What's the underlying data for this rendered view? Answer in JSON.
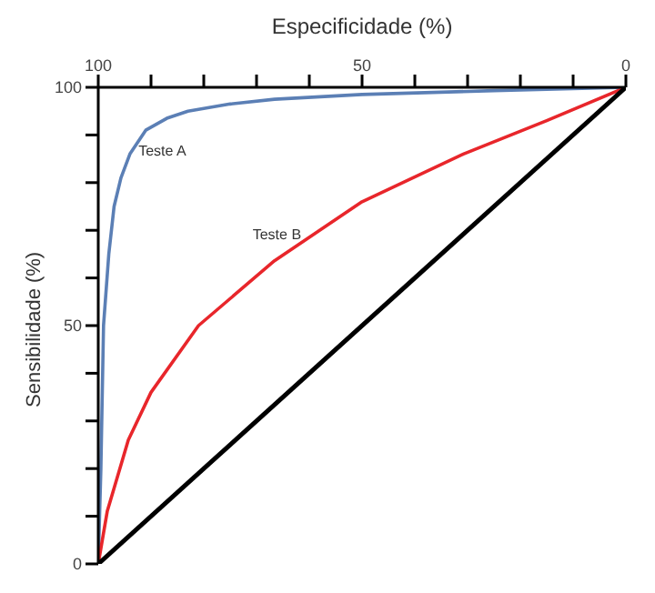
{
  "chart_data": {
    "type": "line",
    "xlabel": "Especificidade (%)",
    "ylabel": "Sensibilidade (%)",
    "xlim": [
      100,
      0
    ],
    "ylim": [
      0,
      100
    ],
    "xticks": [
      100,
      {
        "value": 90,
        "label": null
      },
      {
        "value": 80,
        "label": null
      },
      {
        "value": 70,
        "label": null
      },
      {
        "value": 60,
        "label": null
      },
      50,
      {
        "value": 40,
        "label": null
      },
      {
        "value": 30,
        "label": null
      },
      {
        "value": 20,
        "label": null
      },
      {
        "value": 10,
        "label": null
      },
      0
    ],
    "yticks": [
      0,
      {
        "value": 10,
        "label": null
      },
      {
        "value": 20,
        "label": null
      },
      {
        "value": 30,
        "label": null
      },
      {
        "value": 40,
        "label": null
      },
      50,
      {
        "value": 60,
        "label": null
      },
      {
        "value": 70,
        "label": null
      },
      {
        "value": 80,
        "label": null
      },
      {
        "value": 90,
        "label": null
      },
      100
    ],
    "grid": false,
    "legend": false,
    "marker": "none",
    "line_style": "solid",
    "series": [
      {
        "name": "Teste A",
        "color": "#5b7fb5",
        "x": [
          100,
          99.5,
          99,
          98,
          97,
          95.7,
          94,
          91,
          87,
          83,
          75,
          66.6,
          50,
          25,
          0
        ],
        "values": [
          0,
          20,
          50,
          65,
          75,
          81,
          86,
          91,
          93.5,
          95,
          96.5,
          97.5,
          98.5,
          99.3,
          100
        ]
      },
      {
        "name": "Teste B",
        "color": "#e8262b",
        "x": [
          100,
          98.3,
          94.3,
          90,
          81,
          66.6,
          50,
          30.8,
          15,
          0
        ],
        "values": [
          0,
          11,
          26,
          36,
          50,
          63.6,
          76,
          86,
          93,
          100
        ]
      },
      {
        "color": "#000000",
        "x": [
          100,
          0
        ],
        "values": [
          0,
          100
        ]
      }
    ]
  }
}
